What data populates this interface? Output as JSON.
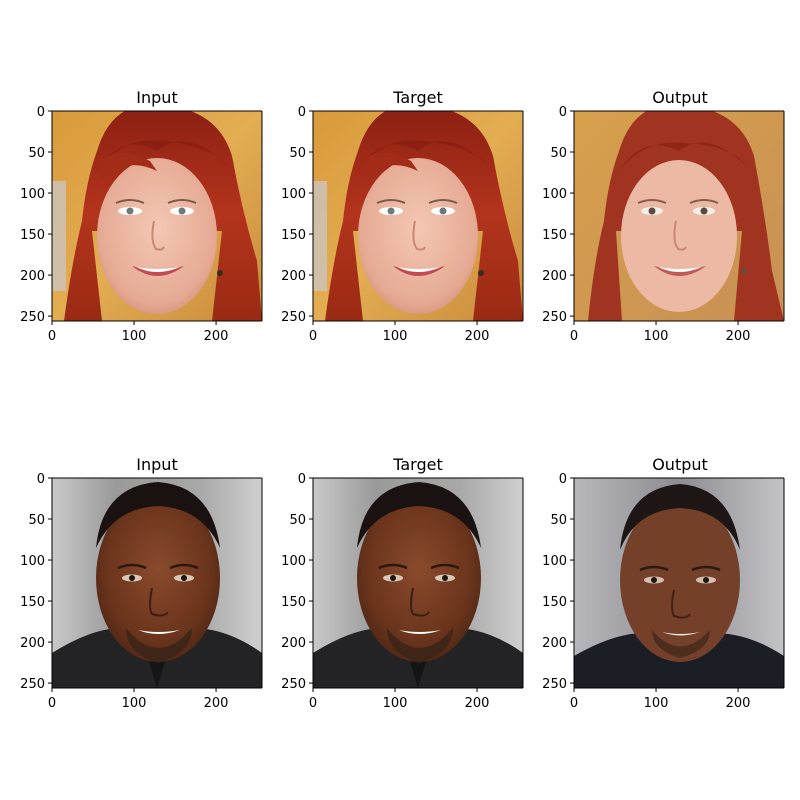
{
  "figure": {
    "panels": [
      {
        "title": "Input",
        "subject": "red-haired woman smiling",
        "kind": "original"
      },
      {
        "title": "Target",
        "subject": "red-haired woman smiling",
        "kind": "original"
      },
      {
        "title": "Output",
        "subject": "red-haired woman smiling",
        "kind": "generated"
      },
      {
        "title": "Input",
        "subject": "man with dark skin and beard",
        "kind": "original"
      },
      {
        "title": "Target",
        "subject": "man with dark skin and beard",
        "kind": "original"
      },
      {
        "title": "Output",
        "subject": "man with dark skin and beard",
        "kind": "generated"
      }
    ],
    "x_ticks": [
      "0",
      "100",
      "200"
    ],
    "y_ticks": [
      "0",
      "50",
      "100",
      "150",
      "200",
      "250"
    ],
    "image_extent": [
      0,
      256
    ]
  }
}
